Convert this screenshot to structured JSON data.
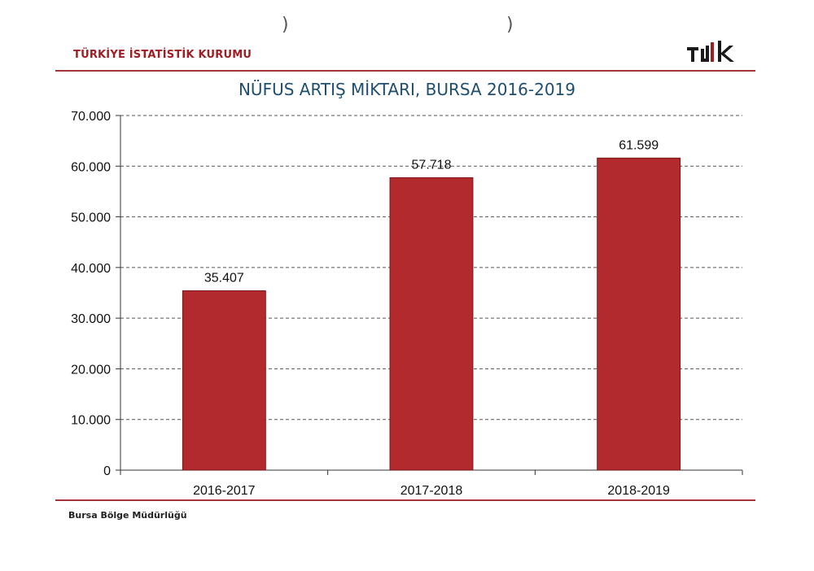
{
  "header": {
    "organization": "TÜRKİYE İSTATİSTİK KURUMU",
    "logo_text": "TÜİK"
  },
  "footer": {
    "office": "Bursa Bölge Müdürlüğü"
  },
  "colors": {
    "bar": "#b22a2e",
    "brand": "#a01e23",
    "title": "#1f4e6e"
  },
  "chart_data": {
    "type": "bar",
    "title": "NÜFUS ARTIŞ MİKTARI, BURSA 2016-2019",
    "categories": [
      "2016-2017",
      "2017-2018",
      "2018-2019"
    ],
    "values": [
      35407,
      57718,
      61599
    ],
    "value_labels": [
      "35.407",
      "57.718",
      "61.599"
    ],
    "ylim": [
      0,
      70000
    ],
    "yticks": [
      0,
      10000,
      20000,
      30000,
      40000,
      50000,
      60000,
      70000
    ],
    "ytick_labels": [
      "0",
      "10.000",
      "20.000",
      "30.000",
      "40.000",
      "50.000",
      "60.000",
      "70.000"
    ],
    "xlabel": "",
    "ylabel": "",
    "grid": true,
    "legend": "none"
  }
}
